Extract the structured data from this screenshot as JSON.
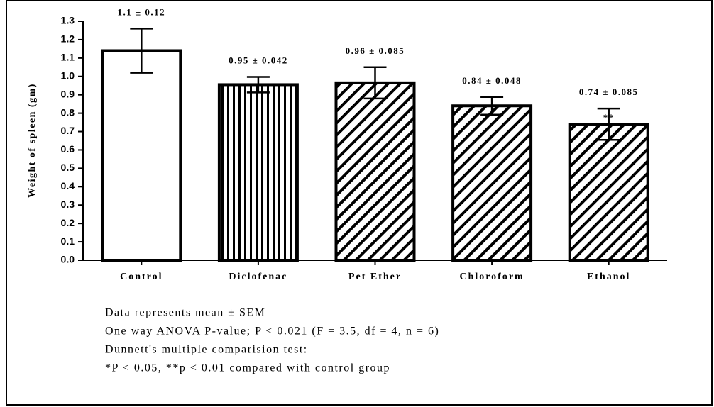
{
  "chart_data": {
    "type": "bar",
    "ylabel": "Weight of spleen (gm)",
    "categories": [
      "Control",
      "Diclofenac",
      "Pet Ether",
      "Chloroform",
      "Ethanol"
    ],
    "values": [
      1.14,
      0.955,
      0.965,
      0.84,
      0.74
    ],
    "errors": [
      0.12,
      0.042,
      0.085,
      0.048,
      0.085
    ],
    "value_labels": [
      "1.1 ± 0.12",
      "0.95 ± 0.042",
      "0.96 ± 0.085",
      "0.84 ± 0.048",
      "0.74 ± 0.085"
    ],
    "significance_labels": [
      null,
      null,
      null,
      null,
      "**"
    ],
    "patterns": [
      "none",
      "vertical",
      "diagonal",
      "diagonal",
      "diagonal"
    ],
    "color": "#000000",
    "ylim": [
      0,
      1.3
    ],
    "yticks": [
      {
        "value": 0,
        "label": "0.0"
      },
      0.1,
      0.2,
      0.3,
      0.4,
      0.5,
      0.6,
      0.7,
      0.8,
      0.9,
      {
        "value": 1,
        "label": "1.0"
      },
      1.1,
      1.2,
      1.3
    ],
    "notes": [
      "Data represents mean ± SEM",
      "One way ANOVA P-value; P < 0.021 (F = 3.5, df = 4, n = 6)",
      "Dunnett's multiple comparision test:",
      "*P < 0.05, **p < 0.01 compared with control group"
    ]
  }
}
